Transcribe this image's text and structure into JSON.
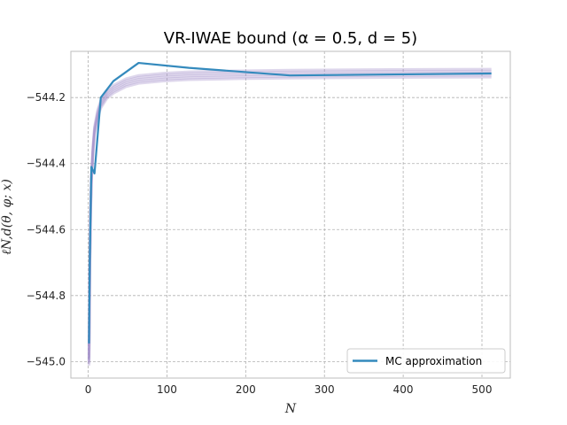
{
  "chart_data": {
    "type": "line",
    "title": "VR-IWAE bound (α = 0.5, d = 5)",
    "xlabel": "N",
    "ylabel": "ℓN,d(θ, φ; x)",
    "xlim": [
      -22,
      536
    ],
    "ylim": [
      -545.05,
      -544.06
    ],
    "xticks": [
      0,
      100,
      200,
      300,
      400,
      500
    ],
    "yticks": [
      -545.0,
      -544.8,
      -544.6,
      -544.4,
      -544.2
    ],
    "ytick_labels": [
      "−545.0",
      "−544.8",
      "−544.6",
      "−544.4",
      "−544.2"
    ],
    "grid": true,
    "legend_position": "lower-right",
    "series": [
      {
        "name": "MC approximation",
        "color": "#348abd",
        "x": [
          1,
          2,
          4,
          8,
          16,
          32,
          64,
          128,
          256,
          512
        ],
        "y": [
          -544.945,
          -544.7,
          -544.41,
          -544.43,
          -544.2,
          -544.15,
          -544.095,
          -544.11,
          -544.133,
          -544.127
        ]
      }
    ],
    "background_bands": {
      "color": "#a08cc8",
      "x": [
        1,
        2,
        3,
        4,
        6,
        8,
        12,
        16,
        24,
        32,
        48,
        64,
        96,
        128,
        192,
        256,
        384,
        512
      ],
      "y": [
        -545.0,
        -544.72,
        -544.55,
        -544.45,
        -544.36,
        -544.3,
        -544.25,
        -544.22,
        -544.19,
        -544.175,
        -544.155,
        -544.145,
        -544.138,
        -544.134,
        -544.131,
        -544.129,
        -544.127,
        -544.126
      ]
    }
  }
}
